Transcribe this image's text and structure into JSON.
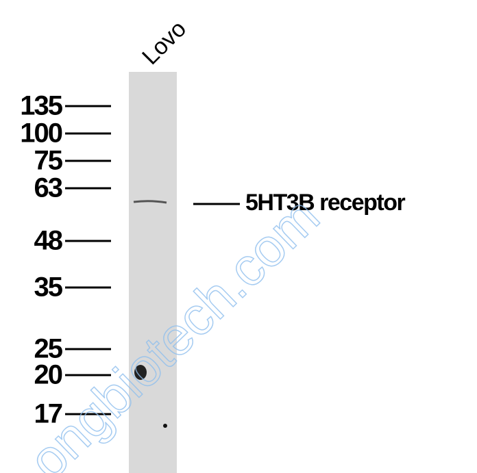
{
  "lane_label": "Lovo",
  "markers": [
    "135",
    "100",
    "75",
    "63",
    "48",
    "35",
    "25",
    "20",
    "17"
  ],
  "band_label": "5HT3B receptor",
  "watermark": "ongbiotech.com"
}
